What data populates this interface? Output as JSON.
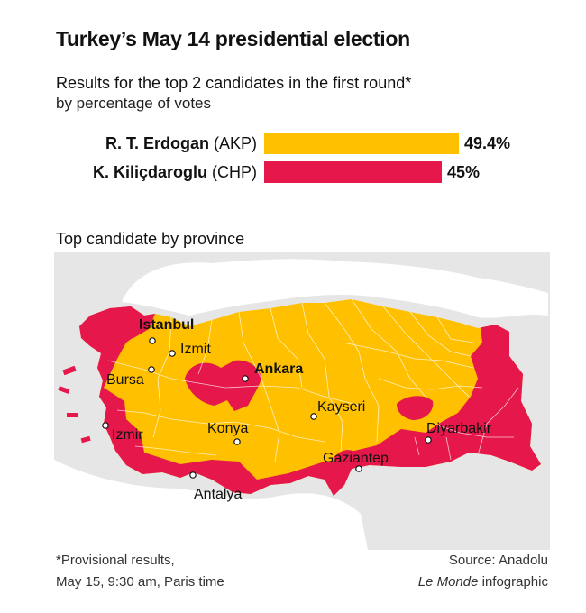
{
  "header": {
    "title": "Turkey’s May 14 presidential election",
    "subtitle_line1": "Results for the top 2 candidates in the first round*",
    "subtitle_line2": "by percentage of votes"
  },
  "chart_data": [
    {
      "type": "bar",
      "orientation": "horizontal",
      "title": "Results for the top 2 candidates in the first round*",
      "subtitle": "by percentage of votes",
      "categories": [
        "R. T. Erdogan (AKP)",
        "K. Kiliçdaroglu (CHP)"
      ],
      "values": [
        49.4,
        45
      ],
      "value_labels": [
        "49.4%",
        "45%"
      ],
      "unit": "%",
      "colors": [
        "#FFC000",
        "#E5174B"
      ],
      "xlim": [
        0,
        49.4
      ]
    },
    {
      "type": "map",
      "title": "Top candidate by province",
      "legend": [
        {
          "candidate": "R. T. Erdogan (AKP)",
          "color": "#FFC000"
        },
        {
          "candidate": "K. Kiliçdaroglu (CHP)",
          "color": "#E5174B"
        }
      ],
      "cities": [
        "Istanbul",
        "Izmit",
        "Bursa",
        "Ankara",
        "Izmir",
        "Konya",
        "Kayseri",
        "Diyarbakir",
        "Gaziantep",
        "Antalya"
      ]
    }
  ],
  "candidates": [
    {
      "name": "R. T. Erdogan",
      "party": "(AKP)",
      "value_label": "49.4%"
    },
    {
      "name": "K. Kiliçdaroglu",
      "party": "(CHP)",
      "value_label": "45%"
    }
  ],
  "map": {
    "title": "Top candidate by province",
    "cities": {
      "istanbul": "Istanbul",
      "izmit": "Izmit",
      "bursa": "Bursa",
      "ankara": "Ankara",
      "izmir": "Izmir",
      "konya": "Konya",
      "kayseri": "Kayseri",
      "diyarbakir": "Diyarbakir",
      "gaziantep": "Gaziantep",
      "antalya": "Antalya"
    },
    "colors": {
      "akp": "#FFC000",
      "chp": "#E5174B",
      "land": "#E6E6E6",
      "sea": "#F3F3F3"
    }
  },
  "footer": {
    "note_line1": "*Provisional results,",
    "note_line2": "May 15, 9:30 am, Paris time",
    "source_line1": "Source: Anadolu",
    "credit_italic": "Le Monde",
    "credit_rest": " infographic"
  }
}
